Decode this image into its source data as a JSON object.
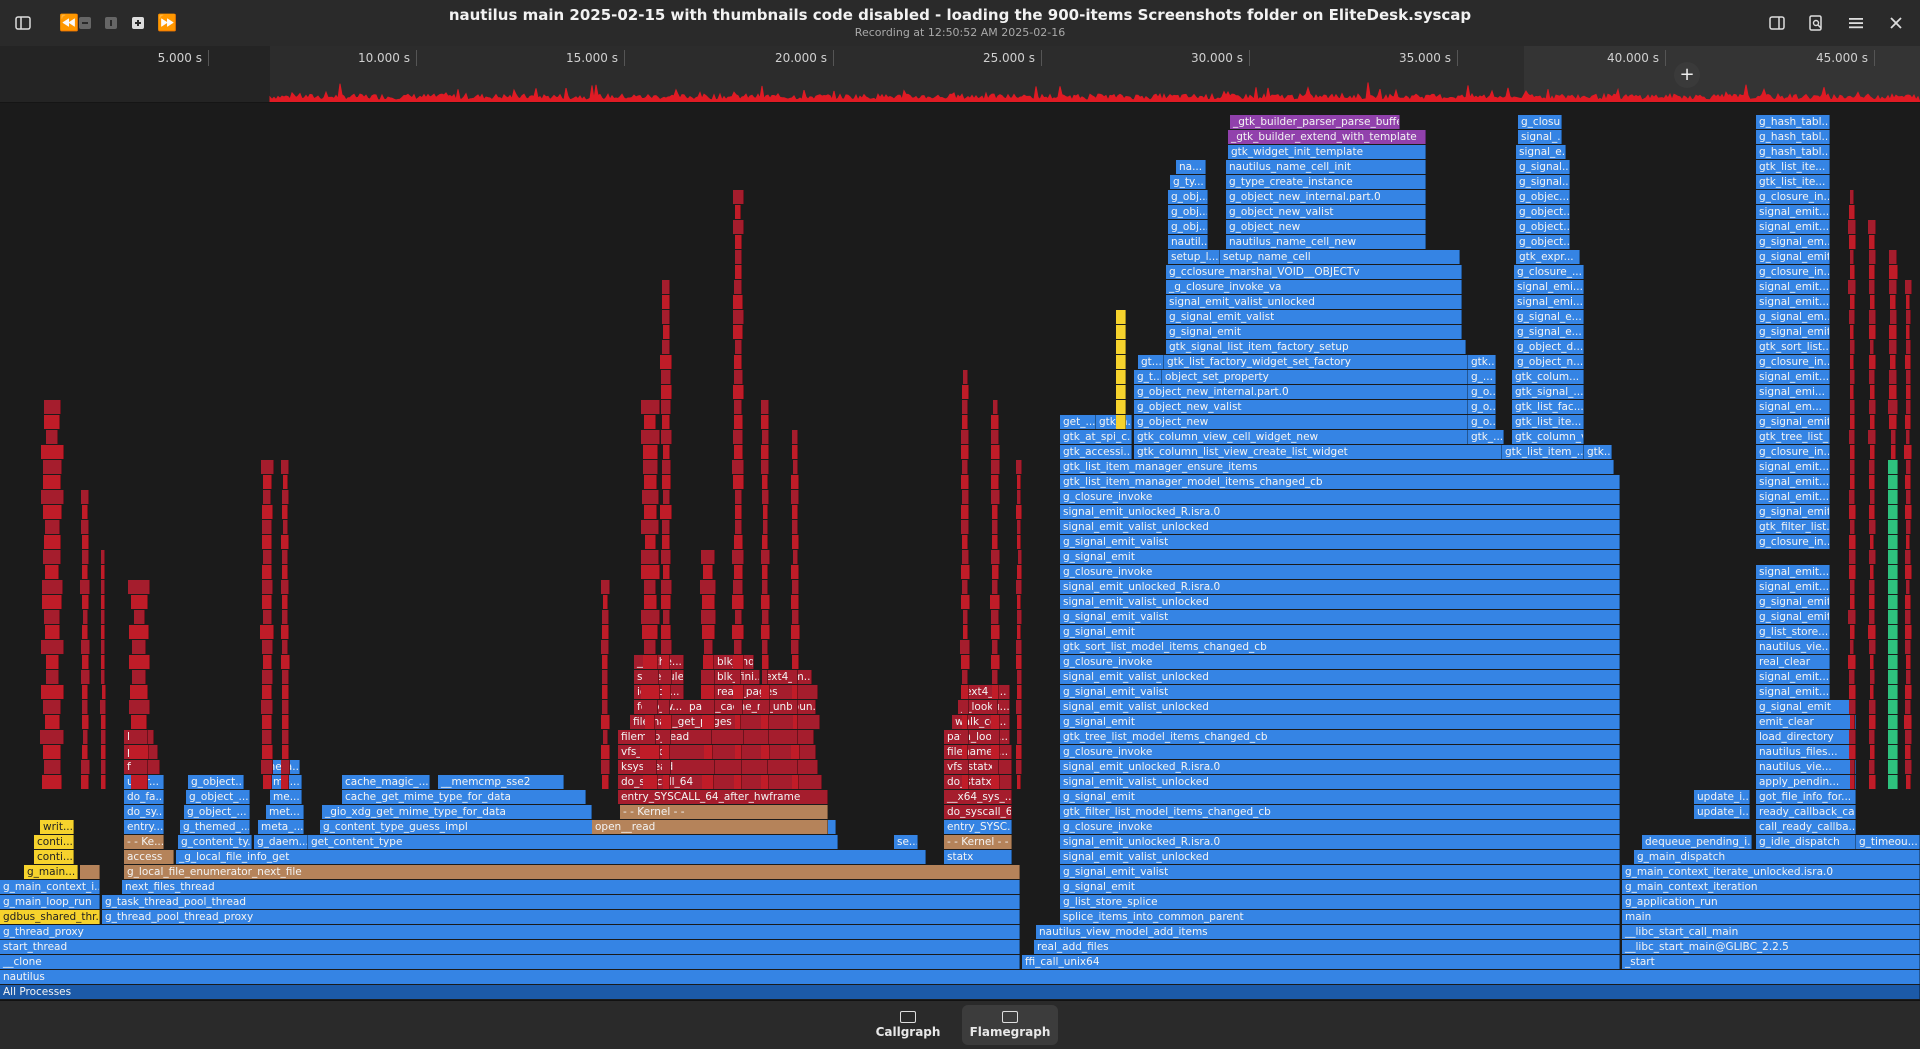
{
  "window": {
    "title": "nautilus main 2025-02-15 with thumbnails code disabled - loading the 900-items Screenshots folder on EliteDesk.syscap",
    "subtitle": "Recording at 12:50:52 AM 2025-02-16"
  },
  "header_icons": {
    "left": [
      "sidebar-toggle-icon",
      "seek-backward-icon",
      "zoom-out-icon",
      "zoom-reset-icon",
      "zoom-in-icon",
      "seek-forward-icon"
    ],
    "right": [
      "sidebar-right-icon",
      "search-document-icon",
      "menu-icon",
      "close-icon"
    ]
  },
  "timeline": {
    "ticks": [
      "5.000 s",
      "10.000 s",
      "15.000 s",
      "20.000 s",
      "25.000 s",
      "30.000 s",
      "35.000 s",
      "40.000 s",
      "45.000 s"
    ]
  },
  "colors": {
    "kernel": "#a51d2d",
    "kernel_light": "#c01c28",
    "blue": "#3584e4",
    "blue_dark": "#1c5aa8",
    "purple": "#9141ac",
    "orange": "#b5835a",
    "yellow": "#f6d32d",
    "green": "#2ec27e",
    "spark": "#e01b24"
  },
  "flame_labels": {
    "l0": "All Processes",
    "l1": "nautilus",
    "l2a": "__clone",
    "l2b": "ffi_call_unix64",
    "l2c": "_start",
    "l3a": "start_thread",
    "l3b": "real_add_files",
    "l3c": "__libc_start_main@GLIBC_2.2.5",
    "l4a": "g_thread_proxy",
    "l4b": "nautilus_view_model_add_items",
    "l4c": "__libc_start_call_main",
    "l5a": "gdbus_shared_thr...",
    "l5b": "g_thread_pool_thread_proxy",
    "l5c": "splice_items_into_common_parent",
    "l5d": "main",
    "l6a": "g_main_loop_run",
    "l6b": "g_task_thread_pool_thread",
    "l6c": "g_list_store_splice",
    "l6d": "g_application_run",
    "l7a": "g_main_context_i...",
    "l7b": "next_files_thread",
    "l7c": "g_signal_emit",
    "l7d": "g_main_context_iteration",
    "l8a": "g_main...",
    "l8b": "g_local_file_enumerator_next_file",
    "l8c": "g_signal_emit_valist",
    "l8d": "g_main_context_iterate_unlocked.isra.0",
    "l9a": "conti...",
    "l9b": "access",
    "l9c": "_g_local_file_info_get",
    "l9d": "statx",
    "l9e": "signal_emit_valist_unlocked",
    "l9f": "g_main_dispatch",
    "l10a": "conti...",
    "l10b": "- - Ke...",
    "l10c": "g_content_ty...",
    "l10d": "g_daem...",
    "l10e": "get_content_type",
    "l10f": "open__read",
    "l10g": "se...",
    "l10h": "- - Kernel - -",
    "l10i": "signal_emit_unlocked_R.isra.0",
    "l10j": "dequeue_pending_i...",
    "l10k": "g_idle_dispatch",
    "l10l": "g_timeou...",
    "l11a": "writ...",
    "l11b": "entry...",
    "l11c": "g_themed_...",
    "l11d": "meta_...",
    "l11e": "g_content_type_guess_impl",
    "l11f": "entry_SYSC...",
    "l11g": "g_closure_invoke",
    "l11h": "call_ready_callba...",
    "l12a": "do_sy...",
    "l12b": "g_object_...",
    "l12c": "met...",
    "l12d": "_gio_xdg_get_mime_type_for_data",
    "l12e": "- - Kernel - -",
    "l12f": "do_syscall_64",
    "l12g": "gtk_filter_list_model_items_changed_cb",
    "l12h": "update_i...",
    "l12i": "ready_callback_call",
    "l13a": "do_fa...",
    "l13b": "g_object_...",
    "l13c": "me...",
    "l13d": "cache_get_mime_type_for_data",
    "l13e": "entry_SYSCALL_64_after_hwframe",
    "l13f": "__x64_sys_...",
    "l13g": "g_signal_emit",
    "l13h": "update_i...",
    "l13i": "got_file_info_for...",
    "l14a": "user...",
    "l14b": "g_object...",
    "l14c": "me...",
    "l14d": "cache_magic_...",
    "l14e": "__memcmp_sse2",
    "l14f": "do_syscall_64",
    "l14g": "do_statx",
    "l14h": "signal_emit_valist_unlocked",
    "l14i": "apply_pendin...",
    "l15a": "fil...",
    "l15b": "meta...",
    "l15c": "ksys_read",
    "l15d": "vfs_statx",
    "l15e": "signal_emit_unlocked_R.isra.0",
    "l15f": "nautilus_vie...",
    "l16a": "pa...",
    "l16b": "vfs_read",
    "l16c": "filename_...",
    "l16d": "g_closure_invoke",
    "l16e": "nautilus_files...",
    "l17a": "li...",
    "l17b": "filemap_read",
    "l17c": "path_look...",
    "l17d": "gtk_tree_list_model_items_changed_cb",
    "l17e": "load_directory",
    "l18a": "filemap_get_pages",
    "l18b": "walk_co...",
    "l18c": "g_signal_emit",
    "l18d": "emit_clear",
    "l19a": "folio_w...",
    "l19b": "page_cache_ra_unboun...",
    "l19c": "__looku...",
    "l19d": "signal_emit_valist_unlocked",
    "l19e": "g_signal_emit",
    "l20a": "io_sch...",
    "l20b": "read_pages",
    "l20c": "ext4_l...",
    "l20d": "g_signal_emit_valist",
    "l20e": "signal_emit...",
    "l21a": "schedule",
    "l21b": "blk_fini...",
    "l21c": "ext4_m...",
    "l21d": "signal_emit_valist_unlocked",
    "l21e": "signal_emit...",
    "l22a": "__sche...",
    "l22b": "blk_mq...",
    "l22c": "g_closure_invoke",
    "l22d": "real_clear",
    "l23a": "gtk_sort_list_model_items_changed_cb",
    "l23b": "nautilus_vie...",
    "l24a": "g_signal_emit",
    "l24b": "g_list_store...",
    "l25a": "g_signal_emit_valist",
    "l25b": "g_signal_emit",
    "l26a": "signal_emit_valist_unlocked",
    "l26b": "g_signal_emit",
    "l27a": "signal_emit_unlocked_R.isra.0",
    "l27b": "signal_emit...",
    "l28a": "g_closure_invoke",
    "l28b": "signal_emit...",
    "l29a": "g_signal_emit",
    "l30a": "g_signal_emit_valist",
    "l30b": "g_closure_in...",
    "l31a": "signal_emit_valist_unlocked",
    "l31b": "gtk_filter_list...",
    "l32a": "signal_emit_unlocked_R.isra.0",
    "l32b": "g_signal_emit",
    "l33a": "g_closure_invoke",
    "l33b": "signal_emit...",
    "l34a": "gtk_list_item_manager_model_items_changed_cb",
    "l34b": "signal_emit...",
    "l35a": "gtk_list_item_manager_ensure_items",
    "l35b": "signal_emit...",
    "l36a": "gtk_accessi...",
    "l36b": "gtk_column_list_view_create_list_widget",
    "l36c": "gtk_list_item_...",
    "l36d": "gtk...",
    "l36e": "g_closure_in...",
    "l37a": "gtk_at_spi_c...",
    "l37b": "gtk_column_view_cell_widget_new",
    "l37c": "gtk_...",
    "l37d": "gtk_column_v...",
    "l37e": "gtk_tree_list_...",
    "l38a": "get_...",
    "l38b": "gtk_a...",
    "l38c": "g_object_new",
    "l38d": "g_o...",
    "l38e": "gtk_list_ite...",
    "l38f": "g_signal_emit",
    "l39a": "g_object_new_valist",
    "l39b": "g_o...",
    "l39c": "gtk_list_fac...",
    "l39d": "signal_em...",
    "l40a": "g_object_new_internal.part.0",
    "l40b": "g_o...",
    "l40c": "gtk_signal_...",
    "l40d": "signal_emi...",
    "l41a": "g_t...",
    "l41b": "object_set_property",
    "l41c": "g_...",
    "l41d": "gtk_colum...",
    "l41e": "signal_emit...",
    "l42a": "gt...",
    "l42b": "gtk_list_factory_widget_set_factory",
    "l42c": "gtk...",
    "l42d": "g_object_n...",
    "l42e": "g_closure_in...",
    "l43a": "gtk_signal_list_item_factory_setup",
    "l43b": "g_object_d...",
    "l43c": "gtk_sort_list...",
    "l44a": "g_signal_emit",
    "l44b": "g_signal_e...",
    "l44c": "g_signal_emit",
    "l45a": "g_signal_emit_valist",
    "l45b": "g_signal_e...",
    "l45c": "g_signal_em...",
    "l46a": "signal_emit_valist_unlocked",
    "l46b": "signal_emi...",
    "l46c": "signal_emit...",
    "l47a": "_g_closure_invoke_va",
    "l47b": "signal_emi...",
    "l47c": "signal_emit...",
    "l48a": "g_cclosure_marshal_VOID__OBJECTv",
    "l48b": "g_closure_...",
    "l48c": "g_closure_in...",
    "l49a": "setup_l...",
    "l49b": "setup_name_cell",
    "l49c": "gtk_expr...",
    "l49d": "g_signal_emit",
    "l50a": "nautil...",
    "l50b": "nautilus_name_cell_new",
    "l50c": "g_object...",
    "l50d": "g_signal_em...",
    "l51a": "g_obj...",
    "l51b": "g_object_new",
    "l51c": "g_object...",
    "l51d": "signal_emit...",
    "l52a": "g_obj...",
    "l52b": "g_object_new_valist",
    "l52c": "g_object...",
    "l52d": "signal_emit...",
    "l53a": "g_obj...",
    "l53b": "g_object_new_internal.part.0",
    "l53c": "g_objec...",
    "l53d": "g_closure_in...",
    "l54a": "g_ty...",
    "l54b": "g_type_create_instance",
    "l54c": "g_signal...",
    "l54d": "gtk_list_ite...",
    "l55a": "na...",
    "l55b": "nautilus_name_cell_init",
    "l55c": "g_signal...",
    "l55d": "gtk_list_ite...",
    "l56a": "gtk_widget_init_template",
    "l56b": "signal_e...",
    "l56c": "g_hash_tabl...",
    "l57a": "_gtk_builder_extend_with_template",
    "l57b": "signal_...",
    "l57c": "g_hash_tabl...",
    "l58a": "_gtk_builder_parser_parse_buffer",
    "l58b": "g_closu...",
    "l58c": "g_hash_tabl...",
    "kern": [
      "u...",
      "_...",
      "_...",
      "e...",
      "do...",
      "en...",
      "...",
      "se...",
      "...",
      "sc...",
      "bl...",
      "__bl...",
      "blk_...",
      "blk_...",
      "...",
      "...",
      "...",
      "su...",
      "...",
      "sc...",
      "_...",
      "p...",
      "d...",
      "d...",
      "d...",
      "e...",
      "r..",
      "...",
      "...",
      "o...",
      "g...",
      "...",
      "...",
      "c..."
    ]
  },
  "footer": {
    "tabs": [
      {
        "label": "Callgraph",
        "icon": "callgraph-icon"
      },
      {
        "label": "Flamegraph",
        "icon": "flamegraph-icon"
      }
    ]
  }
}
